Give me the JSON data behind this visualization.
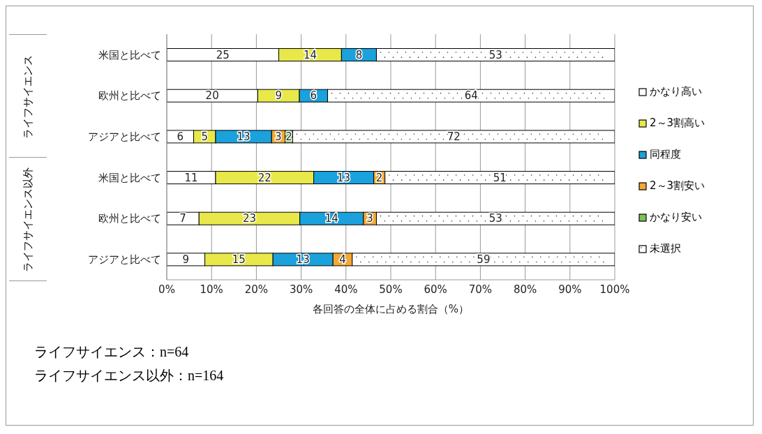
{
  "chart_data": {
    "type": "bar",
    "orientation": "horizontal",
    "stacked": true,
    "xlabel": "各回答の全体に占める割合（%）",
    "categories": [
      "米国と比べて",
      "欧州と比べて",
      "アジアと比べて",
      "米国と比べて",
      "欧州と比べて",
      "アジアと比べて"
    ],
    "series": [
      {
        "name": "かなり高い",
        "color": "#ffffff",
        "values": [
          25.0,
          20.3,
          6.0,
          10.9,
          7.2,
          8.5
        ],
        "value_labels": [
          "25",
          "20",
          "6",
          "11",
          "7",
          "9"
        ]
      },
      {
        "name": "2～3割高い",
        "color": "#e8e84a",
        "values": [
          14.0,
          9.3,
          4.9,
          21.9,
          22.5,
          15.2
        ],
        "value_labels": [
          "14",
          "9",
          "5",
          "22",
          "23",
          "15"
        ]
      },
      {
        "name": "同程度",
        "color": "#1ba1dc",
        "values": [
          7.8,
          6.3,
          12.5,
          13.4,
          14.2,
          13.4
        ],
        "value_labels": [
          "8",
          "6",
          "13",
          "13",
          "14",
          "13"
        ]
      },
      {
        "name": "2～3割安い",
        "color": "#f4a934",
        "values": [
          null,
          null,
          3.0,
          2.5,
          2.9,
          4.3
        ],
        "value_labels": [
          null,
          null,
          "3",
          "2",
          "3",
          "4"
        ]
      },
      {
        "name": "かなり安い",
        "color": "#7dc355",
        "values": [
          null,
          null,
          1.7,
          null,
          null,
          null
        ],
        "value_labels": [
          null,
          null,
          "2",
          null,
          null,
          null
        ]
      },
      {
        "name": "未選択",
        "color": "#ffffff",
        "values": [
          53.2,
          64.1,
          71.9,
          51.3,
          53.2,
          58.6
        ],
        "value_labels": [
          "53",
          "64",
          "72",
          "51",
          "53",
          "59"
        ]
      }
    ],
    "xlim": [
      0,
      100
    ],
    "xticks": [
      {
        "value": 0,
        "label": "0%"
      },
      {
        "value": 10,
        "label": "10%"
      },
      {
        "value": 20,
        "label": "20%"
      },
      {
        "value": 30,
        "label": "30%"
      },
      {
        "value": 40,
        "label": "40%"
      },
      {
        "value": 50,
        "label": "50%"
      },
      {
        "value": 60,
        "label": "60%"
      },
      {
        "value": 70,
        "label": "70%"
      },
      {
        "value": 80,
        "label": "80%"
      },
      {
        "value": 90,
        "label": "90%"
      },
      {
        "value": 100,
        "label": "100%"
      }
    ],
    "grid": "x",
    "legend": "right",
    "annotations": [
      "ライフサイエンス",
      "ライフサイエンス以外",
      "ライフサイエンス：n=64",
      "ライフサイエンス以外：n=164"
    ]
  }
}
